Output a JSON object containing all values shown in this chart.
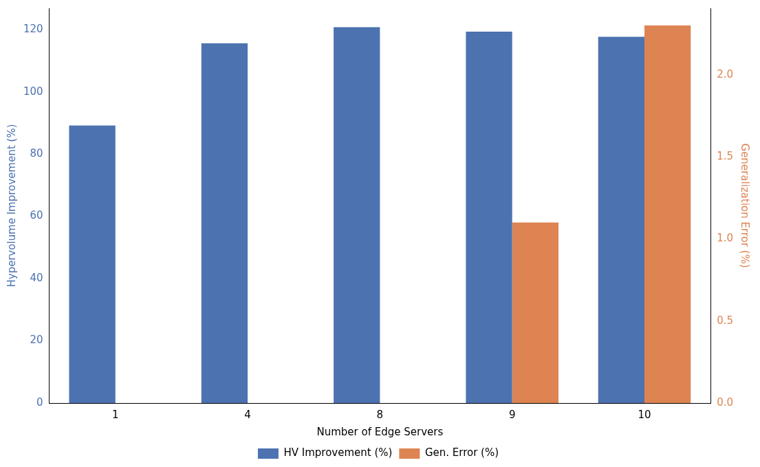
{
  "chart_data": {
    "type": "bar",
    "xlabel": "Number of Edge Servers",
    "ylabel": "Hypervolume Improvement (%)",
    "y2label": "Generalization Error (%)",
    "categories": [
      "1",
      "4",
      "8",
      "9",
      "10"
    ],
    "series": [
      {
        "name": "HV Improvement (%)",
        "color": "#4c72b0",
        "values": [
          89.2,
          115.6,
          120.8,
          119.4,
          117.7
        ]
      },
      {
        "name": "Gen. Error (%)",
        "color": "#dd8452",
        "axis": "y2",
        "values": [
          0,
          0,
          0,
          1.1,
          2.3
        ]
      }
    ],
    "ylim": [
      0,
      126.9
    ],
    "yticks": [
      0,
      20,
      40,
      60,
      80,
      100,
      120
    ],
    "y2lim": [
      0,
      2.405
    ],
    "y2ticks": [
      {
        "value": 0,
        "label": "0.0"
      },
      {
        "value": 0.5,
        "label": "0.5"
      },
      {
        "value": 1,
        "label": "1.0"
      },
      {
        "value": 1.5,
        "label": "1.5"
      },
      {
        "value": 2,
        "label": "2.0"
      }
    ],
    "grid": false,
    "legend": "bottom"
  }
}
